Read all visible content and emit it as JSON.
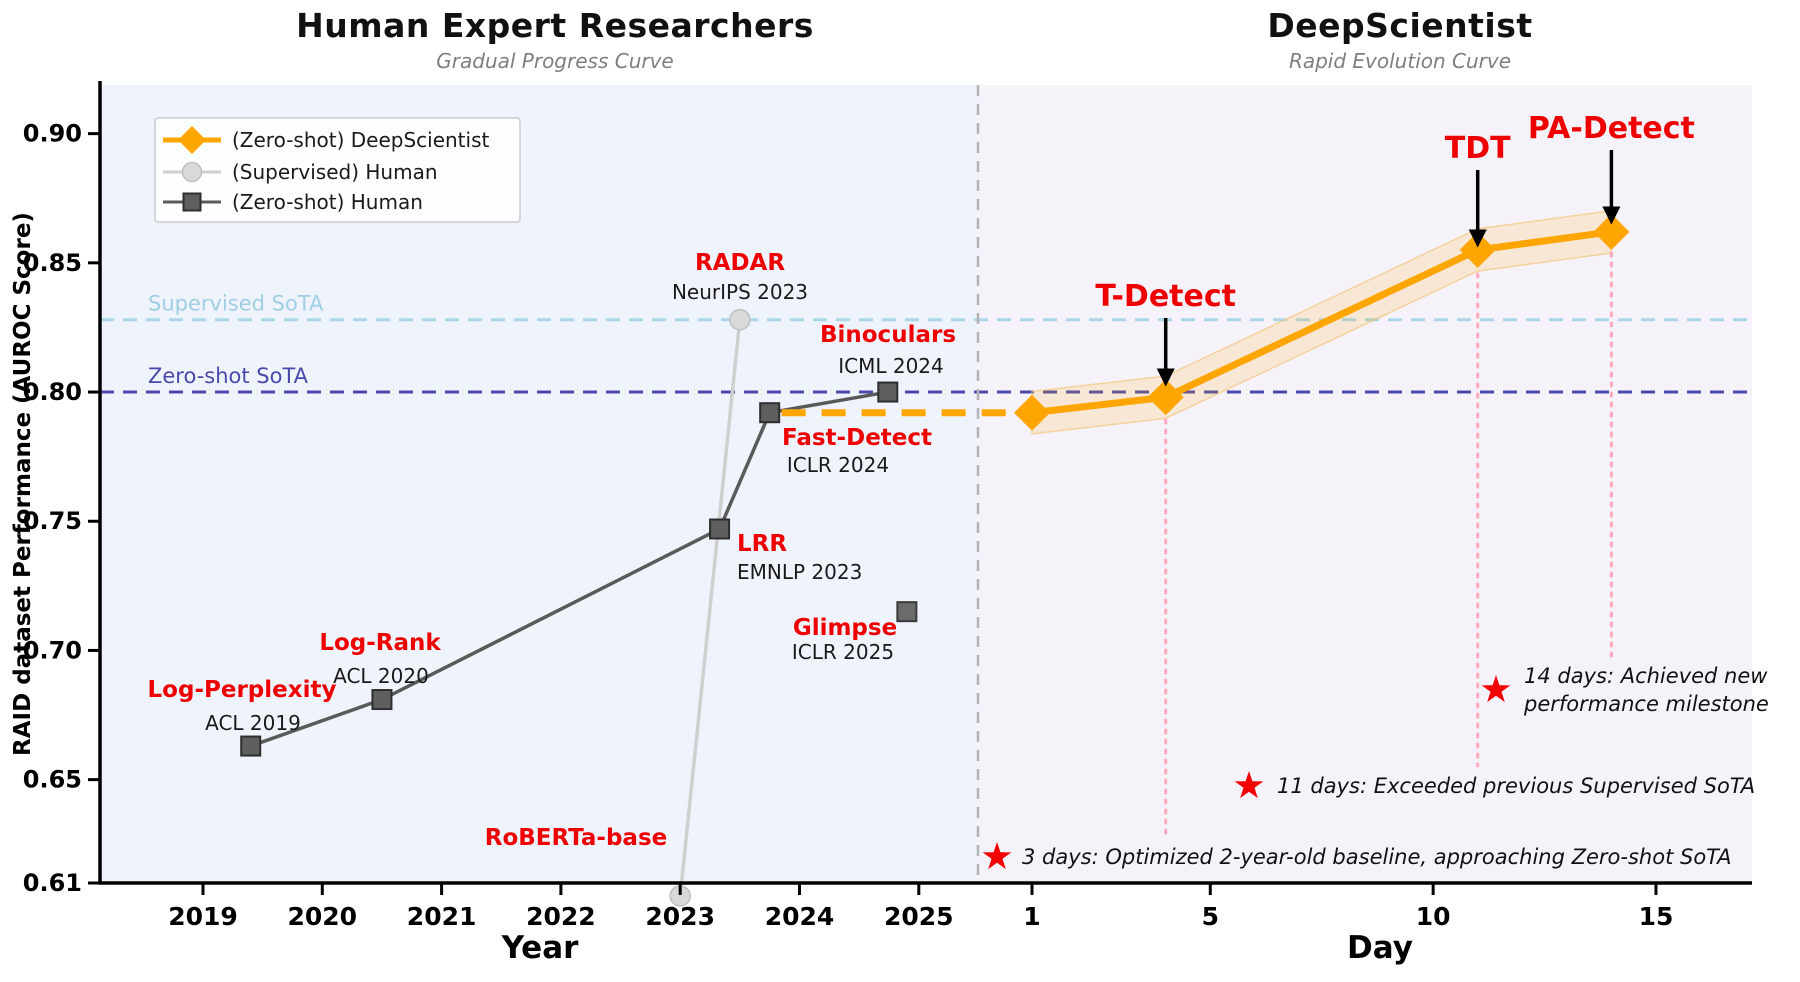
{
  "header": {
    "left": {
      "title": "Human Expert Researchers",
      "subtitle": "Gradual Progress Curve"
    },
    "right": {
      "title": "DeepScientist",
      "subtitle": "Rapid Evolution Curve"
    }
  },
  "legend": {
    "items": [
      {
        "label": "(Zero-shot) DeepScientist",
        "marker": "diamond-icon",
        "color": "#FFA500"
      },
      {
        "label": "(Supervised) Human",
        "marker": "circle-icon",
        "color": "#d9d9d9"
      },
      {
        "label": "(Zero-shot) Human",
        "marker": "square-icon",
        "color": "#5f5f5f"
      }
    ]
  },
  "chart_data": {
    "type": "line",
    "ylabel": "RAID dataset Performance (AUROC Score)",
    "ylim": [
      0.607,
      0.921
    ],
    "y_ticks": [
      0.9,
      0.85,
      0.8,
      0.75,
      0.7,
      0.65,
      0.61
    ],
    "x_axes": {
      "left": {
        "label": "Year",
        "ticks": [
          2019,
          2020,
          2021,
          2022,
          2023,
          2024,
          2025
        ]
      },
      "right": {
        "label": "Day",
        "ticks": [
          1,
          5,
          10,
          15
        ]
      }
    },
    "reference_lines": [
      {
        "name": "Supervised SoTA",
        "value": 0.828,
        "color": "#a9d6e8",
        "label_color": "#9fcfe4"
      },
      {
        "name": "Zero-shot SoTA",
        "value": 0.8,
        "color": "#4949ac",
        "label_color": "#4949ac"
      }
    ],
    "series": [
      {
        "name": "(Zero-shot) DeepScientist",
        "axis": "day",
        "color": "#FFA500",
        "band": 0.0082,
        "x": [
          1,
          4,
          11,
          14
        ],
        "values": [
          0.792,
          0.798,
          0.855,
          0.862
        ]
      },
      {
        "name": "(Supervised) Human",
        "axis": "year",
        "color": "#d0d0d0",
        "x": [
          2023.0,
          2023.5
        ],
        "values": [
          0.605,
          0.828
        ]
      },
      {
        "name": "(Zero-shot) Human",
        "axis": "year",
        "color": "#5a5a5a",
        "x": [
          2019.4,
          2020.5,
          2023.33,
          2023.75,
          2024.74
        ],
        "values": [
          0.663,
          0.681,
          0.747,
          0.792,
          0.8
        ]
      }
    ],
    "isolated_points": [
      {
        "name": "Glimpse",
        "axis": "year",
        "x": 2024.9,
        "value": 0.715
      }
    ],
    "connector": {
      "from_year": 2023.75,
      "to_day": 1,
      "value": 0.792,
      "style": "dashed",
      "color": "#FFA500"
    },
    "methods_left": [
      {
        "name": "Log-Perplexity",
        "venue": "ACL 2019"
      },
      {
        "name": "Log-Rank",
        "venue": "ACL 2020"
      },
      {
        "name": "LRR",
        "venue": "EMNLP 2023"
      },
      {
        "name": "RADAR",
        "venue": "NeurIPS 2023"
      },
      {
        "name": "Fast-Detect",
        "venue": "ICLR 2024"
      },
      {
        "name": "Binoculars",
        "venue": "ICML 2024"
      },
      {
        "name": "Glimpse",
        "venue": "ICLR 2025"
      },
      {
        "name": "RoBERTa-base",
        "venue": ""
      }
    ],
    "methods_right": [
      {
        "name": "T-Detect",
        "day": 4,
        "value": 0.798
      },
      {
        "name": "TDT",
        "day": 11,
        "value": 0.855
      },
      {
        "name": "PA-Detect",
        "day": 14,
        "value": 0.862
      }
    ],
    "milestones": [
      {
        "id": "m1",
        "text_lines": [
          "3 days: Optimized 2-year-old baseline, approaching Zero-shot SoTA"
        ]
      },
      {
        "id": "m2",
        "text_lines": [
          "11 days: Exceeded previous Supervised SoTA"
        ]
      },
      {
        "id": "m3",
        "text_lines": [
          "14 days: Achieved new",
          "performance milestone"
        ]
      }
    ],
    "colors": {
      "accent_orange": "#FFA500",
      "label_red": "#ee0000",
      "bg_left": "#eff3fb",
      "bg_right": "#f6f2f9",
      "separator": "#b3b3b3",
      "pink_dotted": "#ffa9bd",
      "axis": "#000000"
    }
  }
}
